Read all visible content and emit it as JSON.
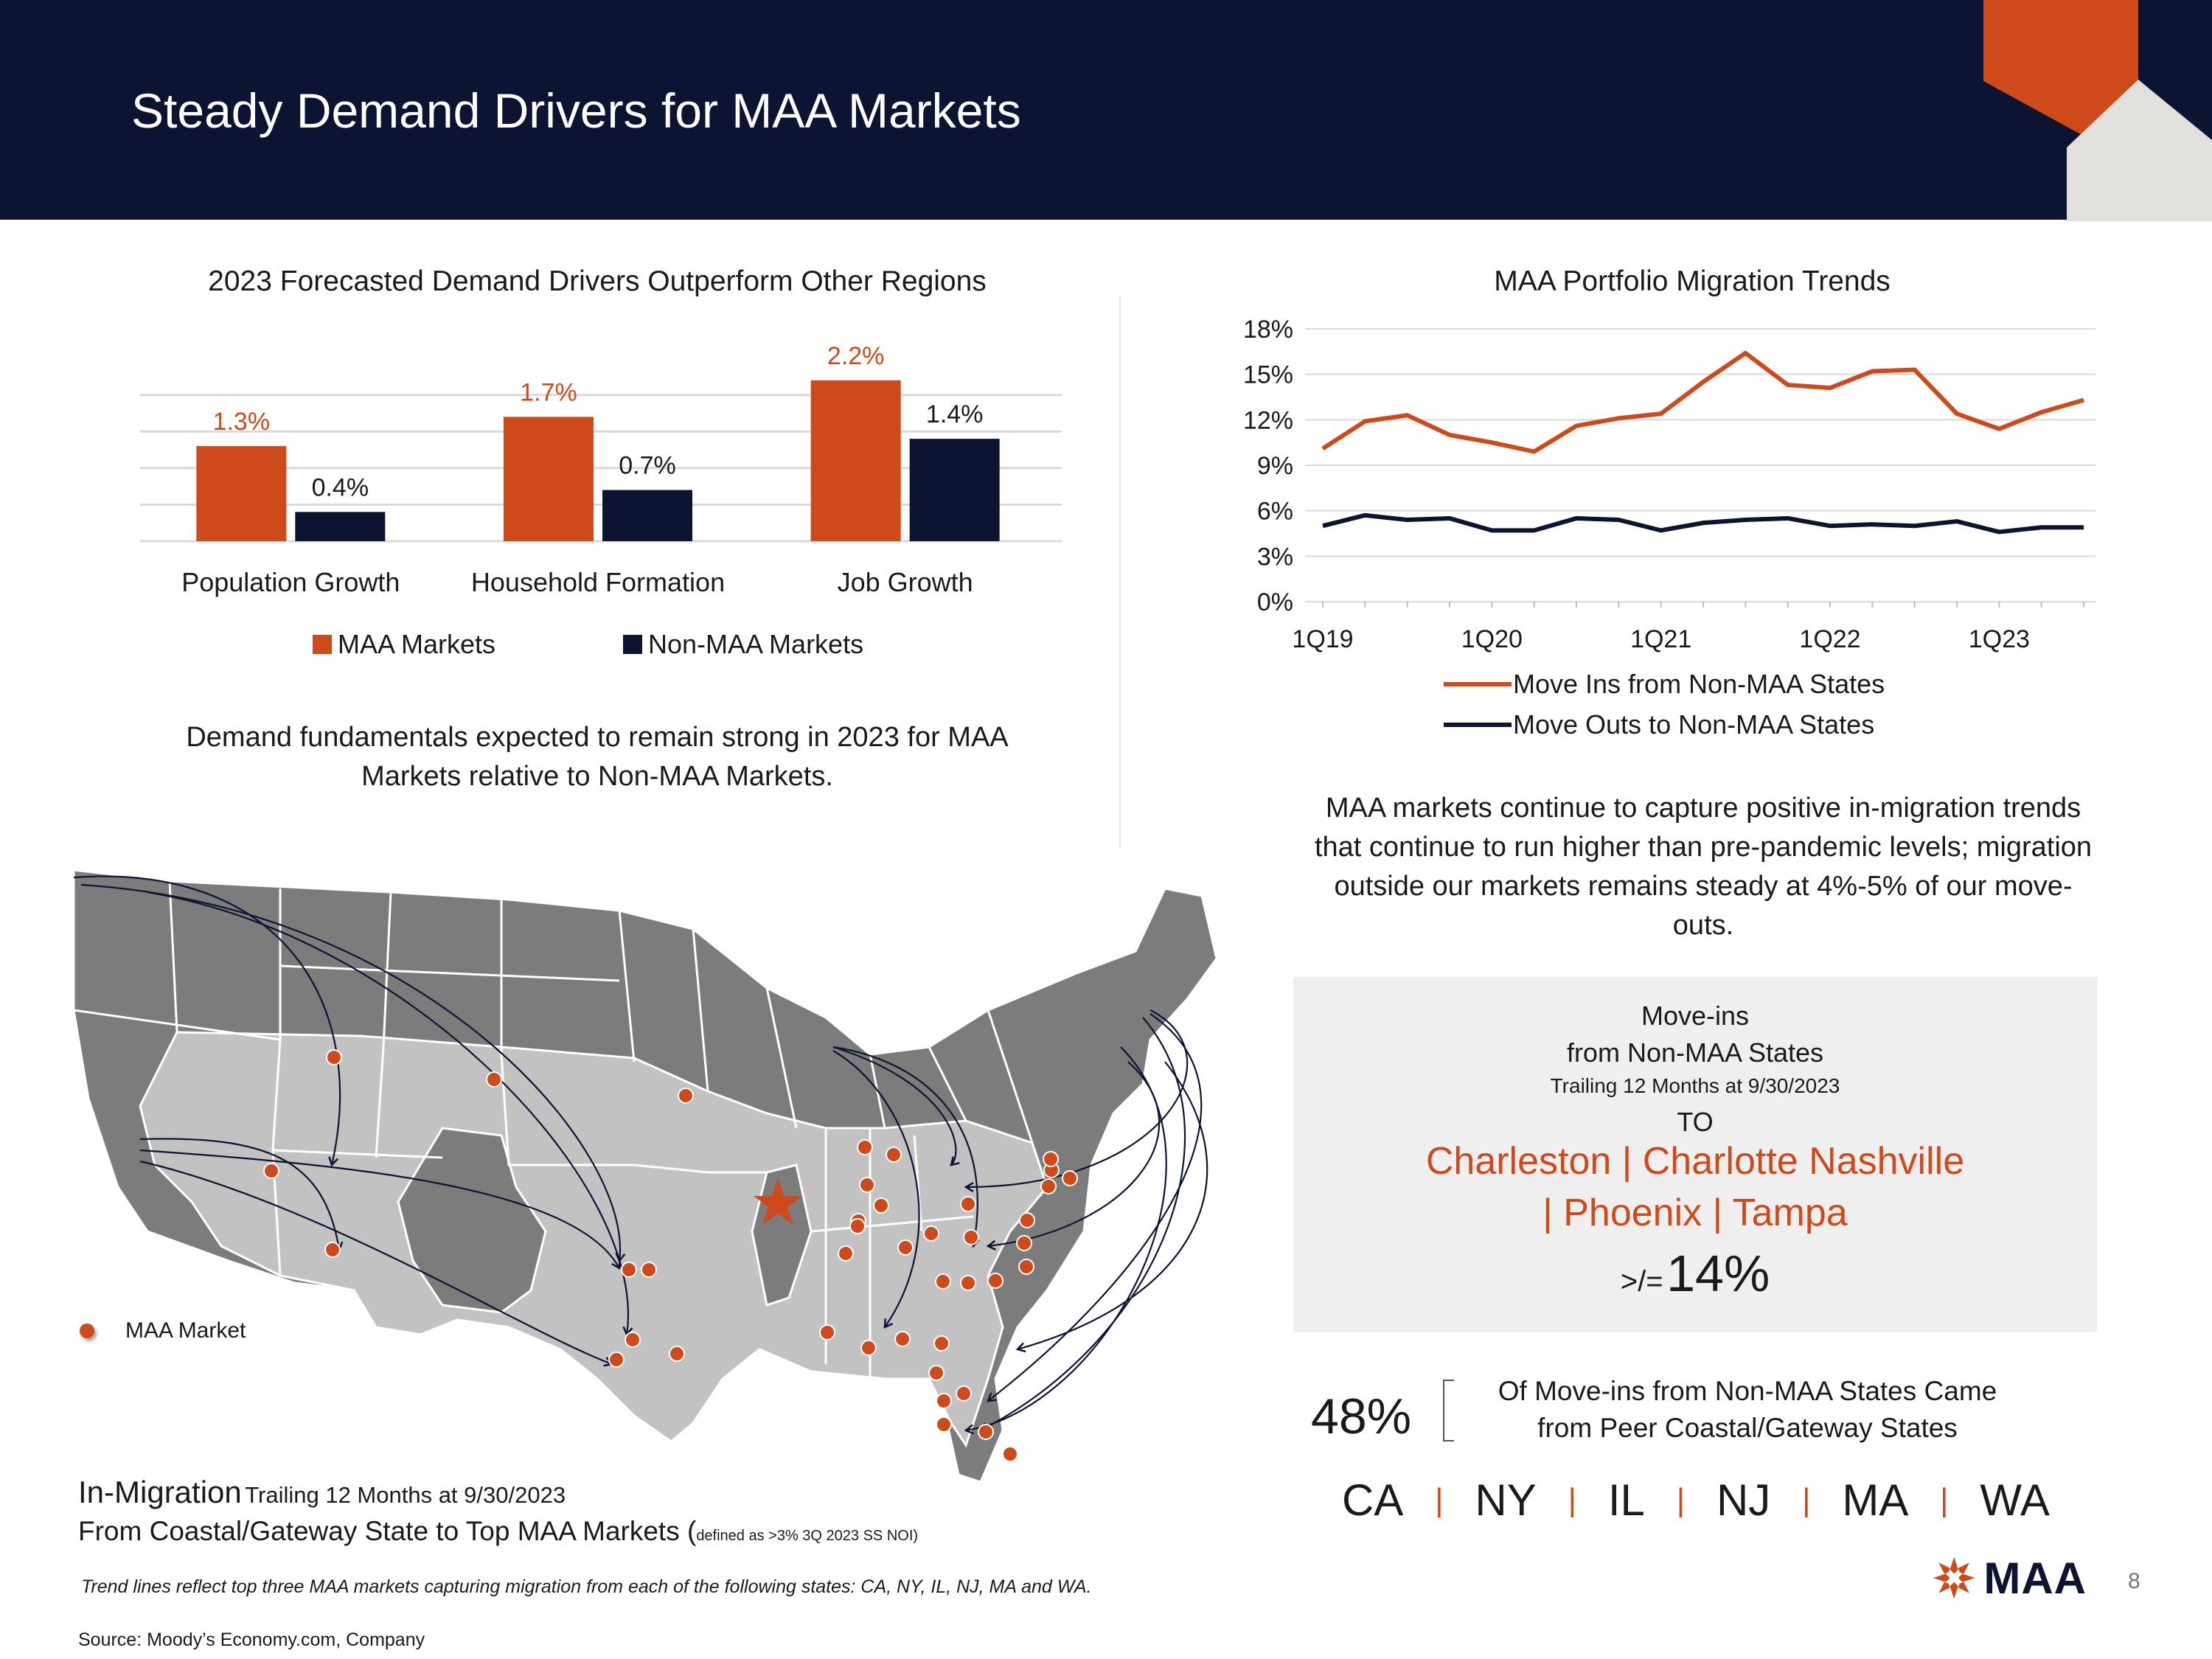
{
  "header": {
    "title": "Steady Demand Drivers for MAA Markets"
  },
  "bar_chart": {
    "title": "2023 Forecasted Demand Drivers Outperform Other Regions",
    "caption": "Demand fundamentals expected to remain strong in 2023 for MAA Markets relative to Non-MAA Markets."
  },
  "line_chart": {
    "title": "MAA Portfolio Migration Trends",
    "caption": "MAA markets continue to capture positive in-migration trends that continue to run higher than pre-pandemic levels; migration outside our markets remains steady at 4%-5% of our move-outs."
  },
  "chart_data": [
    {
      "type": "bar",
      "title": "2023 Forecasted Demand Drivers Outperform Other Regions",
      "categories": [
        "Population Growth",
        "Household Formation",
        "Job Growth"
      ],
      "series": [
        {
          "name": "MAA Markets",
          "values": [
            1.3,
            1.7,
            2.2
          ],
          "labels": [
            "1.3%",
            "1.7%",
            "2.2%"
          ],
          "color": "#cf4a1a"
        },
        {
          "name": "Non-MAA Markets",
          "values": [
            0.4,
            0.7,
            1.4
          ],
          "labels": [
            "0.4%",
            "0.7%",
            "1.4%"
          ],
          "color": "#0c1432"
        }
      ],
      "ylim": [
        0,
        2.5
      ],
      "grid": true,
      "legend": "bottom"
    },
    {
      "type": "line",
      "title": "MAA Portfolio Migration Trends",
      "x": [
        "1Q19",
        "2Q19",
        "3Q19",
        "4Q19",
        "1Q20",
        "2Q20",
        "3Q20",
        "4Q20",
        "1Q21",
        "2Q21",
        "3Q21",
        "4Q21",
        "1Q22",
        "2Q22",
        "3Q22",
        "4Q22",
        "1Q23",
        "2Q23",
        "3Q23"
      ],
      "x_tick_labels": [
        "1Q19",
        "1Q20",
        "1Q21",
        "1Q22",
        "1Q23"
      ],
      "y_tick_labels": [
        "0%",
        "3%",
        "6%",
        "9%",
        "12%",
        "15%",
        "18%"
      ],
      "ylim": [
        0,
        18
      ],
      "grid": true,
      "legend": "bottom",
      "series": [
        {
          "name": "Move Ins from Non-MAA States",
          "color": "#cf4a1a",
          "values": [
            10.1,
            11.9,
            12.3,
            11.0,
            10.5,
            9.9,
            11.6,
            12.1,
            12.4,
            14.5,
            16.4,
            14.3,
            14.1,
            15.2,
            15.3,
            12.4,
            11.4,
            12.5,
            13.3
          ]
        },
        {
          "name": "Move Outs to Non-MAA States",
          "color": "#0c1432",
          "values": [
            5.0,
            5.7,
            5.4,
            5.5,
            4.7,
            4.7,
            5.5,
            5.4,
            4.7,
            5.2,
            5.4,
            5.5,
            5.0,
            5.1,
            5.0,
            5.3,
            4.6,
            4.9,
            4.9
          ]
        }
      ]
    }
  ],
  "map": {
    "legend_label": "MAA Market",
    "inmigration_title": "In-Migration",
    "inmigration_subtitle": "Trailing 12 Months at 9/30/2023",
    "inmigration_line2": "From Coastal/Gateway State to Top MAA Markets (",
    "inmigration_small": "defined as >3% 3Q 2023 SS NOI)",
    "colors": {
      "states": "#7c7c7c",
      "maa_states": "#c2c2c2",
      "dot": "#cf4a1a",
      "arrow": "#0c1432"
    }
  },
  "movebox": {
    "line1": "Move-ins",
    "line2": "from Non-MAA States",
    "line3": "Trailing 12 Months at 9/30/2023",
    "line4": "TO",
    "cities1": "Charleston | Charlotte  Nashville",
    "cities2": "| Phoenix | Tampa",
    "prefix": ">/=",
    "value": "14%"
  },
  "peer": {
    "percent": "48%",
    "text1": "Of Move-ins from Non-MAA States Came",
    "text2": "from Peer Coastal/Gateway States",
    "states": [
      "CA",
      "NY",
      "IL",
      "NJ",
      "MA",
      "WA"
    ],
    "separator": "|"
  },
  "footer": {
    "note": "Trend lines reflect top three MAA markets capturing migration from each of the following states: CA, NY, IL, NJ, MA and WA.",
    "source": "Source: Moody’s Economy.com, Company",
    "page": "8",
    "logo_text": "MAA"
  }
}
